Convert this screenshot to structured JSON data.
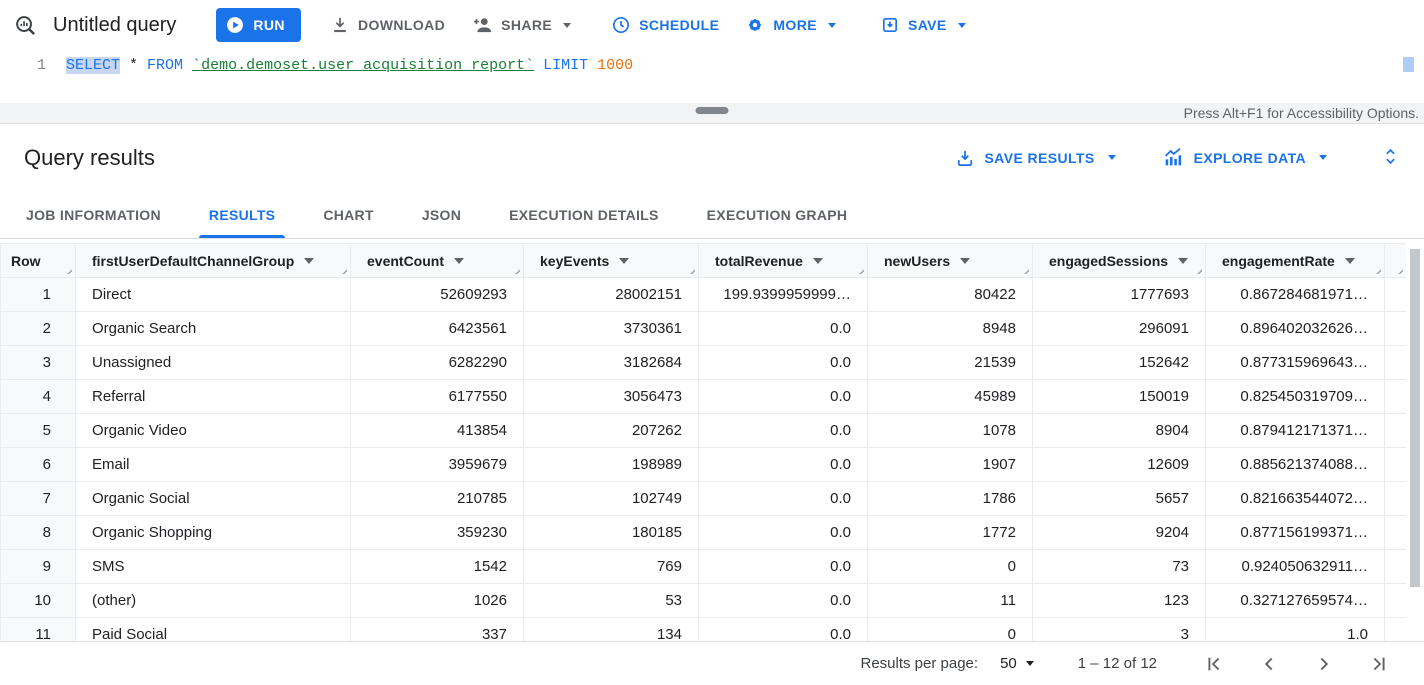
{
  "toolbar": {
    "title": "Untitled query",
    "run_label": "RUN",
    "download_label": "DOWNLOAD",
    "share_label": "SHARE",
    "schedule_label": "SCHEDULE",
    "more_label": "MORE",
    "save_label": "SAVE"
  },
  "editor": {
    "line_number": "1",
    "sql_tokens": [
      {
        "type": "kw-sel",
        "text": "SELECT"
      },
      {
        "type": "plain",
        "text": " * "
      },
      {
        "type": "kw",
        "text": "FROM"
      },
      {
        "type": "plain",
        "text": " "
      },
      {
        "type": "table",
        "text": "`demo.demoset.user_acquisition_report`"
      },
      {
        "type": "plain",
        "text": " "
      },
      {
        "type": "kw",
        "text": "LIMIT"
      },
      {
        "type": "plain",
        "text": " "
      },
      {
        "type": "num",
        "text": "1000"
      }
    ],
    "accessibility_hint": "Press Alt+F1 for Accessibility Options."
  },
  "results_header": {
    "title": "Query results",
    "save_results_label": "SAVE RESULTS",
    "explore_data_label": "EXPLORE DATA"
  },
  "tabs": [
    {
      "label": "JOB INFORMATION",
      "active": false
    },
    {
      "label": "RESULTS",
      "active": true
    },
    {
      "label": "CHART",
      "active": false
    },
    {
      "label": "JSON",
      "active": false
    },
    {
      "label": "EXECUTION DETAILS",
      "active": false
    },
    {
      "label": "EXECUTION GRAPH",
      "active": false
    }
  ],
  "table": {
    "columns": [
      {
        "label": "Row",
        "sortable": false
      },
      {
        "label": "firstUserDefaultChannelGroup",
        "sortable": true
      },
      {
        "label": "eventCount",
        "sortable": true
      },
      {
        "label": "keyEvents",
        "sortable": true
      },
      {
        "label": "totalRevenue",
        "sortable": true
      },
      {
        "label": "newUsers",
        "sortable": true
      },
      {
        "label": "engagedSessions",
        "sortable": true
      },
      {
        "label": "engagementRate",
        "sortable": true
      }
    ],
    "rows": [
      [
        "1",
        "Direct",
        "52609293",
        "28002151",
        "199.9399959999…",
        "80422",
        "1777693",
        "0.867284681971…"
      ],
      [
        "2",
        "Organic Search",
        "6423561",
        "3730361",
        "0.0",
        "8948",
        "296091",
        "0.896402032626…"
      ],
      [
        "3",
        "Unassigned",
        "6282290",
        "3182684",
        "0.0",
        "21539",
        "152642",
        "0.877315969643…"
      ],
      [
        "4",
        "Referral",
        "6177550",
        "3056473",
        "0.0",
        "45989",
        "150019",
        "0.825450319709…"
      ],
      [
        "5",
        "Organic Video",
        "413854",
        "207262",
        "0.0",
        "1078",
        "8904",
        "0.879412171371…"
      ],
      [
        "6",
        "Email",
        "3959679",
        "198989",
        "0.0",
        "1907",
        "12609",
        "0.885621374088…"
      ],
      [
        "7",
        "Organic Social",
        "210785",
        "102749",
        "0.0",
        "1786",
        "5657",
        "0.821663544072…"
      ],
      [
        "8",
        "Organic Shopping",
        "359230",
        "180185",
        "0.0",
        "1772",
        "9204",
        "0.877156199371…"
      ],
      [
        "9",
        "SMS",
        "1542",
        "769",
        "0.0",
        "0",
        "73",
        "0.924050632911…"
      ],
      [
        "10",
        "(other)",
        "1026",
        "53",
        "0.0",
        "11",
        "123",
        "0.327127659574…"
      ]
    ],
    "partial_row": [
      "11",
      "Paid Social",
      "337",
      "134",
      "0.0",
      "0",
      "3",
      "1.0"
    ]
  },
  "pagination": {
    "results_per_page_label": "Results per page:",
    "page_size": "50",
    "range_label": "1 – 12 of 12"
  },
  "colors": {
    "accent_blue": "#1a73e8",
    "gray_text": "#5f6368",
    "sql_table_green": "#188038",
    "sql_number_orange": "#e8710a",
    "selection_blue": "#c7d7f1"
  }
}
